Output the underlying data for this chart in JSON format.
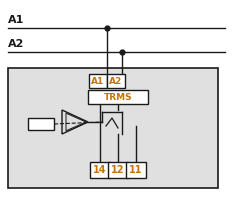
{
  "fig_width": 2.33,
  "fig_height": 2.04,
  "dpi": 100,
  "bg_color": "#ffffff",
  "box_bg": "#e0e0e0",
  "line_color": "#1a1a1a",
  "label_color": "#c8720a",
  "dark_color": "#1a1a1a",
  "A1_label": "A1",
  "A2_label": "A2",
  "TRMS_label": "TRMS",
  "terminals": [
    "14",
    "12",
    "11"
  ]
}
